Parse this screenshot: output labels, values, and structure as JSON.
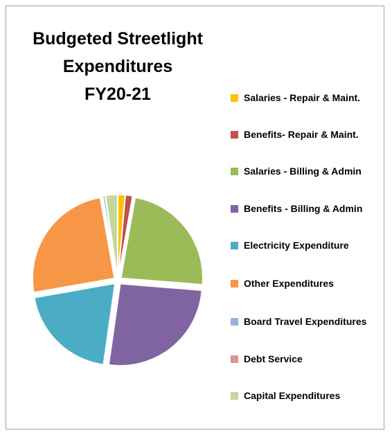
{
  "chart_data": {
    "type": "pie",
    "title": "Budgeted Streetlight\nExpenditures\nFY20-21",
    "categories": [
      "Salaries - Repair & Maint.",
      "Benefits- Repair & Maint.",
      "Salaries - Billing & Admin",
      "Benefits - Billing & Admin",
      "Electricity Expenditure",
      "Other Expenditures",
      "Board Travel Expenditures",
      "Debt Service",
      "Capital Expenditures"
    ],
    "values": [
      1.4,
      1.4,
      23.5,
      26,
      20,
      25,
      0.4,
      0.1,
      2.3
    ],
    "colors": [
      "#ffc000",
      "#c0504d",
      "#9bbb59",
      "#8064a2",
      "#4bacc6",
      "#f79646",
      "#95b3d7",
      "#d99694",
      "#c3d69b"
    ],
    "legend": "right"
  }
}
